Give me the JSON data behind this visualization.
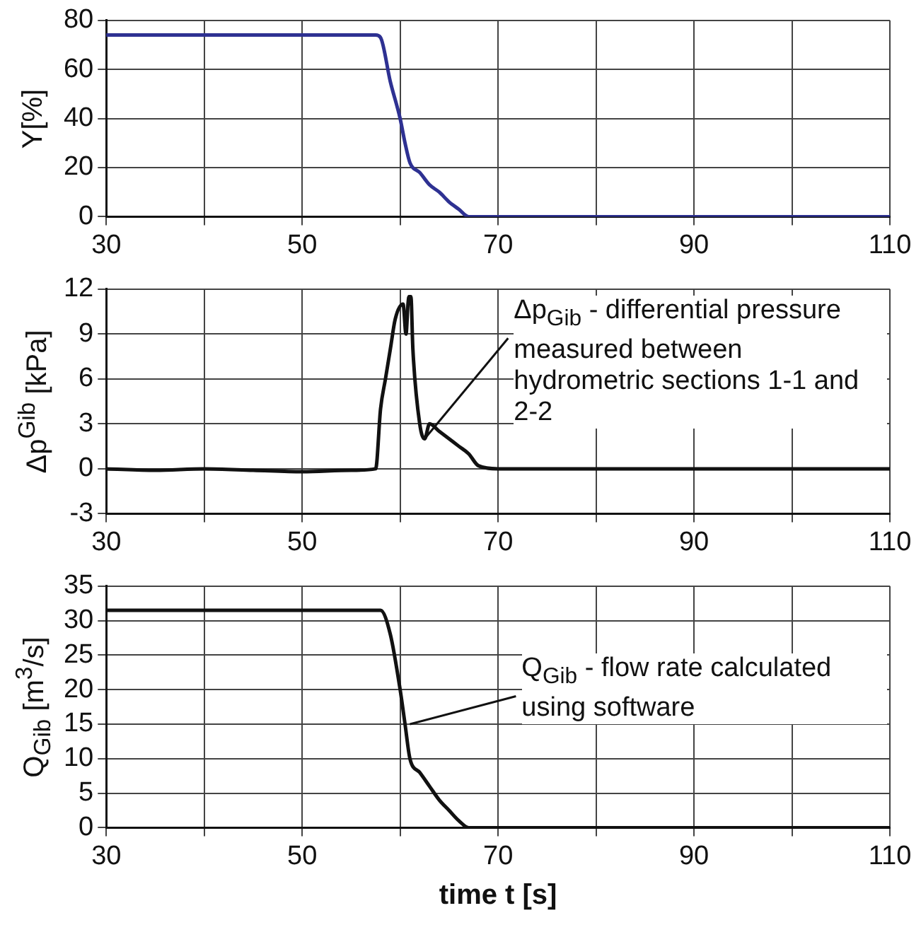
{
  "chart_data": [
    {
      "type": "line",
      "ylabel": "Y[%]",
      "xlim": [
        30,
        110
      ],
      "ylim": [
        0,
        80
      ],
      "xticks": [
        30,
        {
          "value": 40,
          "label": null
        },
        50,
        {
          "value": 60,
          "label": null
        },
        70,
        {
          "value": 80,
          "label": null
        },
        90,
        {
          "value": 100,
          "label": null
        },
        110
      ],
      "yticks": [
        0,
        20,
        40,
        60,
        80
      ],
      "grid": true,
      "line_style": "solid",
      "series": [
        {
          "color": "#2e3192",
          "x": [
            30,
            57.5,
            58,
            59,
            60,
            60.5,
            61,
            62,
            63,
            64,
            65,
            66,
            67,
            110
          ],
          "values": [
            74,
            74,
            73,
            55,
            40,
            30,
            22,
            18,
            13,
            10,
            6,
            3,
            0,
            0
          ]
        }
      ]
    },
    {
      "type": "line",
      "ylabel": "Δp$^{Gib}$ [kPa]",
      "xlim": [
        30,
        110
      ],
      "ylim": [
        -3,
        12
      ],
      "xticks": [
        30,
        {
          "value": 40,
          "label": null
        },
        50,
        {
          "value": 60,
          "label": null
        },
        70,
        {
          "value": 80,
          "label": null
        },
        90,
        {
          "value": 100,
          "label": null
        },
        110
      ],
      "yticks": [
        -3,
        0,
        3,
        6,
        9,
        12
      ],
      "grid": true,
      "line_style": "solid",
      "annotations": [
        {
          "text": "Δp$_{Gib}$ - differential pressure measured between hydrometric sections 1-1 and 2-2",
          "x": 62.5,
          "y": 2
        }
      ],
      "series": [
        {
          "color": "#111111",
          "x": [
            30,
            35,
            40,
            45,
            50,
            55,
            57.5,
            58,
            58.5,
            59,
            59.5,
            60.3,
            60.6,
            60.8,
            60.9,
            61.1,
            61.3,
            62,
            62.5,
            63,
            64,
            65,
            66,
            67,
            68,
            70,
            80,
            110
          ],
          "values": [
            0,
            -0.1,
            0,
            -0.1,
            -0.2,
            -0.1,
            0,
            4,
            6,
            8,
            10,
            11,
            9,
            11,
            11.5,
            11.5,
            8,
            3,
            2,
            3,
            2.5,
            2,
            1.5,
            1,
            0.2,
            0,
            0,
            0
          ]
        }
      ]
    },
    {
      "type": "line",
      "ylabel": "Q$_{Gib}$ [m$^{3}$/s]",
      "xlabel": "time t [s]",
      "xlim": [
        30,
        110
      ],
      "ylim": [
        0,
        35
      ],
      "xticks": [
        30,
        {
          "value": 40,
          "label": null
        },
        50,
        {
          "value": 60,
          "label": null
        },
        70,
        {
          "value": 80,
          "label": null
        },
        90,
        {
          "value": 100,
          "label": null
        },
        110
      ],
      "yticks": [
        0,
        5,
        10,
        15,
        20,
        25,
        30,
        35
      ],
      "grid": true,
      "line_style": "solid",
      "annotations": [
        {
          "text": "Q$_{Gib}$ - flow rate calculated using software",
          "x": 61,
          "y": 15
        }
      ],
      "series": [
        {
          "color": "#111111",
          "x": [
            30,
            58,
            59,
            60,
            60.5,
            61,
            62,
            63,
            64,
            65,
            66,
            67,
            110
          ],
          "values": [
            31.5,
            31.5,
            28,
            20,
            15,
            10,
            8,
            6,
            4,
            2.5,
            1,
            0,
            0
          ]
        }
      ]
    }
  ]
}
